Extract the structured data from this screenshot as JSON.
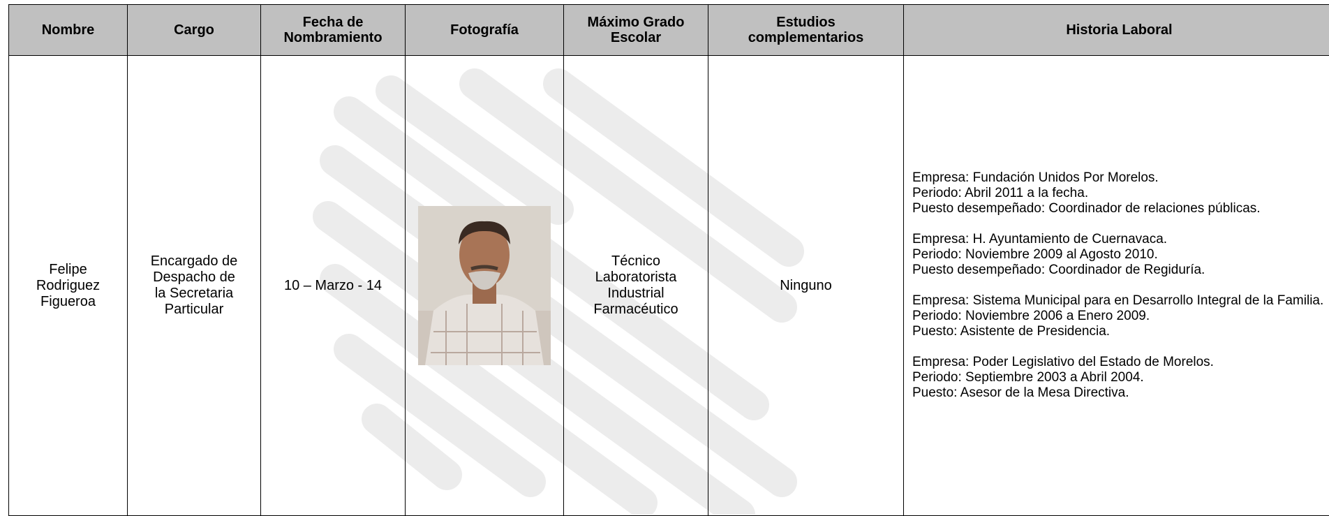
{
  "table": {
    "headers": [
      [
        "Nombre"
      ],
      [
        "Cargo"
      ],
      [
        "Fecha de",
        "Nombramiento"
      ],
      [
        "Fotografía"
      ],
      [
        "Máximo Grado",
        "Escolar"
      ],
      [
        "Estudios",
        "complementarios"
      ],
      [
        "Historia Laboral"
      ]
    ],
    "rows": [
      [
        [
          "Felipe",
          "Rodriguez",
          "Figueroa"
        ],
        [
          "Encargado de",
          "Despacho de",
          "la Secretaria",
          "Particular"
        ],
        [
          "10 – Marzo - 14"
        ],
        [],
        [
          "Técnico",
          "Laboratorista",
          "Industrial",
          "Farmacéutico"
        ],
        [
          "Ninguno"
        ],
        [
          [
            "Empresa: Fundación Unidos Por Morelos.",
            "Periodo: Abril 2011 a la fecha.",
            "Puesto desempeñado: Coordinador de relaciones públicas."
          ],
          [
            "Empresa: H. Ayuntamiento de Cuernavaca.",
            "Periodo: Noviembre 2009 al Agosto 2010.",
            "Puesto desempeñado: Coordinador de Regiduría."
          ],
          [
            "Empresa: Sistema Municipal para en Desarrollo Integral de la Familia.",
            "Periodo: Noviembre 2006 a Enero 2009.",
            "Puesto: Asistente de Presidencia."
          ],
          [
            "Empresa: Poder Legislativo del Estado de Morelos.",
            "Periodo: Septiembre 2003 a Abril 2004.",
            "Puesto: Asesor de la Mesa Directiva."
          ]
        ]
      ]
    ]
  }
}
